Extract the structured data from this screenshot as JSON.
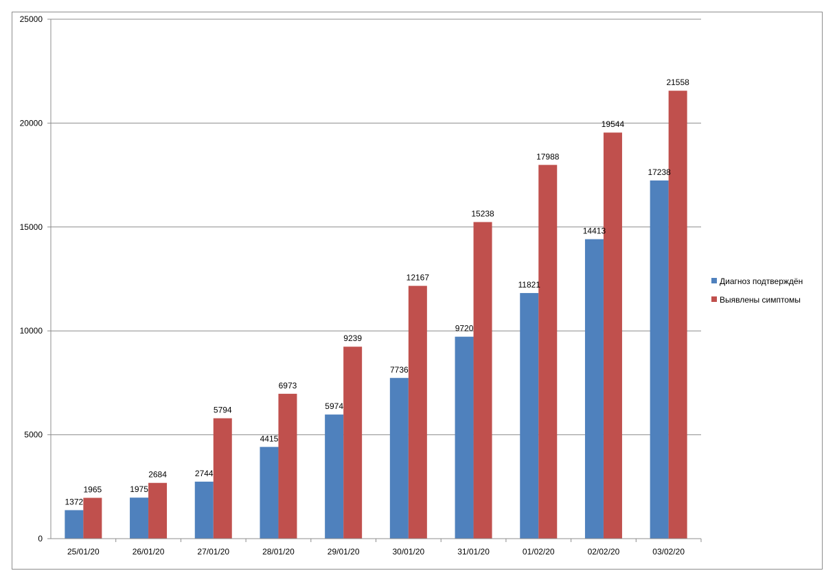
{
  "chart_data": {
    "type": "bar",
    "title": "",
    "xlabel": "",
    "ylabel": "",
    "ylim": [
      0,
      25000
    ],
    "yticks": [
      0,
      5000,
      10000,
      15000,
      20000,
      25000
    ],
    "grid": true,
    "legend_position": "right",
    "categories": [
      "25/01/20",
      "26/01/20",
      "27/01/20",
      "28/01/20",
      "29/01/20",
      "30/01/20",
      "31/01/20",
      "01/02/20",
      "02/02/20",
      "03/02/20"
    ],
    "series": [
      {
        "name": "Диагноз подтверждён",
        "color": "#4F81BD",
        "values": [
          1372,
          1975,
          2744,
          4415,
          5974,
          7736,
          9720,
          11821,
          14413,
          17238
        ]
      },
      {
        "name": "Выявлены симптомы",
        "color": "#C0504D",
        "values": [
          1965,
          2684,
          5794,
          6973,
          9239,
          12167,
          15238,
          17988,
          19544,
          21558
        ]
      }
    ]
  }
}
